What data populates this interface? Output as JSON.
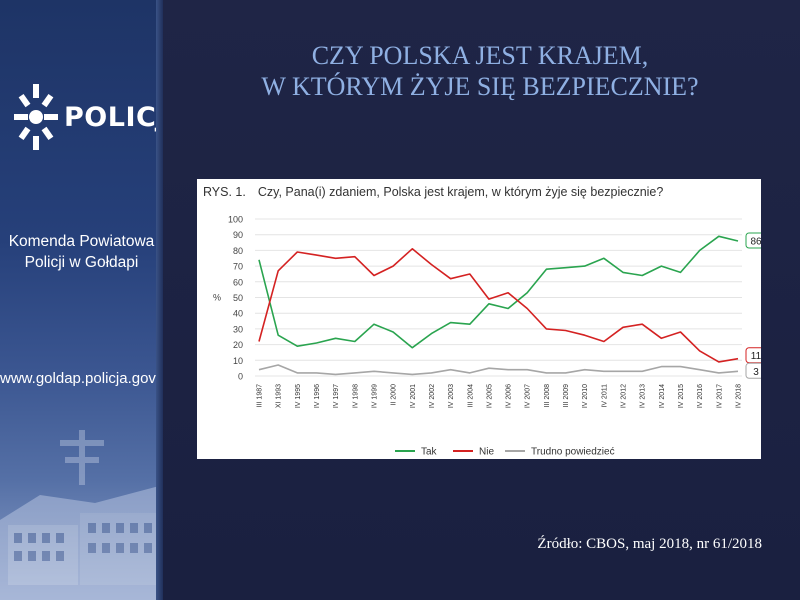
{
  "sidebar": {
    "logo_text": "POLICJA",
    "unit_line1": "Komenda Powiatowa",
    "unit_line2": "Policji w Gołdapi",
    "website": "www.goldap.policja.gov.pl"
  },
  "slide": {
    "title_line1": "CZY POLSKA JEST KRAJEM,",
    "title_line2": "W KTÓRYM ŻYJE SIĘ BEZPIECZNIE?",
    "source": "Źródło: CBOS, maj 2018, nr 61/2018"
  },
  "colors": {
    "background": "#1c2240",
    "title": "#8fb0e3",
    "tak": "#2aa44f",
    "nie": "#d42222",
    "trudno": "#a6a6a6"
  },
  "chart_data": {
    "type": "line",
    "label": "RYS. 1.",
    "title": "Czy, Pana(i) zdaniem, Polska jest krajem, w którym żyje się bezpiecznie?",
    "ylabel": "%",
    "ylim": [
      0,
      100
    ],
    "yticks": [
      0,
      10,
      20,
      30,
      40,
      50,
      60,
      70,
      80,
      90,
      100
    ],
    "grid": true,
    "legend_position": "bottom",
    "categories": [
      "III 1987",
      "XI 1993",
      "IV 1995",
      "IV 1996",
      "IV 1997",
      "IV 1998",
      "IV 1999",
      "II 2000",
      "IV 2001",
      "IV 2002",
      "IV 2003",
      "III 2004",
      "IV 2005",
      "IV 2006",
      "IV 2007",
      "III 2008",
      "III 2009",
      "IV 2010",
      "IV 2011",
      "IV 2012",
      "IV 2013",
      "IV 2014",
      "IV 2015",
      "IV 2016",
      "IV 2017",
      "IV 2018"
    ],
    "series": [
      {
        "name": "Tak",
        "color": "#2aa44f",
        "values": [
          74,
          26,
          19,
          21,
          24,
          22,
          33,
          28,
          18,
          27,
          34,
          33,
          46,
          43,
          53,
          68,
          69,
          70,
          75,
          66,
          64,
          70,
          66,
          80,
          89,
          86
        ],
        "end_label": "86"
      },
      {
        "name": "Nie",
        "color": "#d42222",
        "values": [
          22,
          67,
          79,
          77,
          75,
          76,
          64,
          70,
          81,
          71,
          62,
          65,
          49,
          53,
          43,
          30,
          29,
          26,
          22,
          31,
          33,
          24,
          28,
          16,
          9,
          11
        ],
        "end_label": "11"
      },
      {
        "name": "Trudno powiedzieć",
        "color": "#a6a6a6",
        "values": [
          4,
          7,
          2,
          2,
          1,
          2,
          3,
          2,
          1,
          2,
          4,
          2,
          5,
          4,
          4,
          2,
          2,
          4,
          3,
          3,
          3,
          6,
          6,
          4,
          2,
          3
        ],
        "end_label": "3"
      }
    ]
  }
}
